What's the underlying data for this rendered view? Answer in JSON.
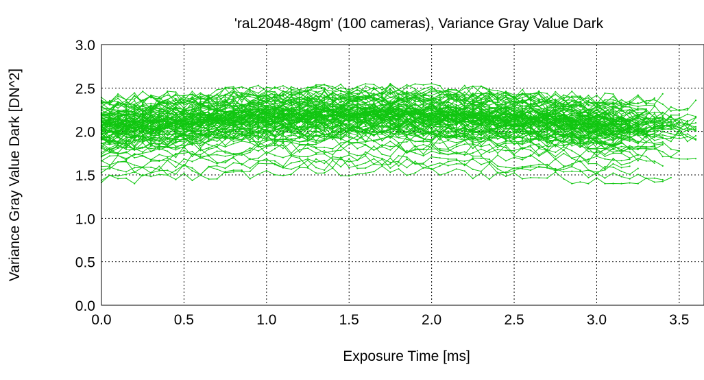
{
  "chart_data": {
    "type": "line",
    "title": "'raL2048-48gm' (100 cameras), Variance Gray Value Dark",
    "xlabel": "Exposure Time [ms]",
    "ylabel": "Variance Gray Value Dark [DN^2]",
    "xlim": [
      0,
      3.65
    ],
    "ylim": [
      0,
      3.0
    ],
    "x_ticks": [
      "0.0",
      "0.5",
      "1.0",
      "1.5",
      "2.0",
      "2.5",
      "3.0",
      "3.5"
    ],
    "y_ticks": [
      "0.0",
      "0.5",
      "1.0",
      "1.5",
      "2.0",
      "2.5",
      "3.0"
    ],
    "grid": true,
    "line_color": "#11c611",
    "series_count": 100,
    "series_x_step_ms": 0.05,
    "series_envelope": {
      "typical_x_end_ms": [
        3.1,
        3.65
      ],
      "y_range": [
        1.4,
        2.55
      ]
    },
    "series_levels_start": [
      1.42,
      1.48,
      1.52,
      1.58,
      1.62,
      1.66,
      1.7,
      1.73,
      1.76,
      1.78,
      1.8,
      1.82,
      1.84,
      1.85,
      1.87,
      1.88,
      1.89,
      1.9,
      1.91,
      1.92,
      1.93,
      1.94,
      1.95,
      1.95,
      1.96,
      1.97,
      1.97,
      1.98,
      1.99,
      1.99,
      2.0,
      2.0,
      2.01,
      2.01,
      2.02,
      2.02,
      2.03,
      2.03,
      2.04,
      2.04,
      2.05,
      2.05,
      2.06,
      2.06,
      2.07,
      2.07,
      2.08,
      2.08,
      2.09,
      2.09,
      2.1,
      2.1,
      2.11,
      2.11,
      2.12,
      2.12,
      2.13,
      2.14,
      2.14,
      2.15,
      2.16,
      2.17,
      2.18,
      2.19,
      2.2,
      2.21,
      2.22,
      2.23,
      2.24,
      2.25,
      2.26,
      2.27,
      2.28,
      2.29,
      2.3,
      2.31,
      2.32,
      2.33,
      2.35,
      2.37,
      2.0,
      1.98,
      2.02,
      1.96,
      2.04,
      1.94,
      2.06,
      1.92,
      2.08,
      1.9,
      2.1,
      1.88,
      2.12,
      1.86,
      2.14,
      1.84,
      2.16,
      1.82,
      2.18,
      2.2
    ]
  }
}
